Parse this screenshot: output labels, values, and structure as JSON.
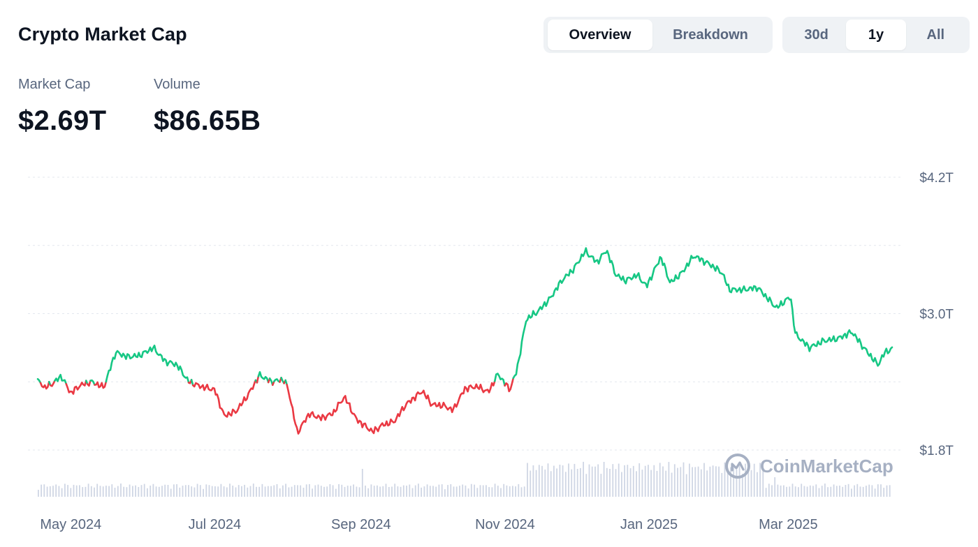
{
  "title": "Crypto Market Cap",
  "view_tabs": [
    {
      "label": "Overview",
      "active": true
    },
    {
      "label": "Breakdown",
      "active": false
    }
  ],
  "range_tabs": [
    {
      "label": "30d",
      "active": false
    },
    {
      "label": "1y",
      "active": true
    },
    {
      "label": "All",
      "active": false
    }
  ],
  "stats": {
    "market_cap": {
      "label": "Market Cap",
      "value": "$2.69T"
    },
    "volume": {
      "label": "Volume",
      "value": "$86.65B"
    }
  },
  "watermark": "CoinMarketCap",
  "colors": {
    "up": "#16c784",
    "down": "#ea3943",
    "volume": "#cfd6e4",
    "grid": "#e3e7ee",
    "text": "#58667e"
  },
  "chart_data": {
    "type": "line",
    "title": "",
    "xlabel": "",
    "ylabel": "",
    "y_tick_labels": [
      "$4.2T",
      "$3.0T",
      "$1.8T"
    ],
    "y_tick_values": [
      4.2,
      3.0,
      1.8
    ],
    "ylim": [
      1.8,
      4.2
    ],
    "x_tick_labels": [
      "May 2024",
      "Jul 2024",
      "Sep 2024",
      "Nov 2024",
      "Jan 2025",
      "Mar 2025"
    ],
    "x_tick_dates": [
      "2024-05-01",
      "2024-07-01",
      "2024-09-01",
      "2024-11-01",
      "2025-01-01",
      "2025-03-01"
    ],
    "xlim": [
      "2024-04-17",
      "2025-04-14"
    ],
    "baseline": 2.4,
    "grid": true,
    "series": [
      {
        "values_unit": "trillion USD",
        "points": [
          [
            "2024-04-17",
            2.41
          ],
          [
            "2024-04-20",
            2.35
          ],
          [
            "2024-04-23",
            2.38
          ],
          [
            "2024-04-27",
            2.45
          ],
          [
            "2024-05-01",
            2.3
          ],
          [
            "2024-05-05",
            2.37
          ],
          [
            "2024-05-10",
            2.4
          ],
          [
            "2024-05-15",
            2.35
          ],
          [
            "2024-05-20",
            2.66
          ],
          [
            "2024-05-25",
            2.62
          ],
          [
            "2024-05-30",
            2.63
          ],
          [
            "2024-06-05",
            2.7
          ],
          [
            "2024-06-10",
            2.58
          ],
          [
            "2024-06-15",
            2.55
          ],
          [
            "2024-06-20",
            2.4
          ],
          [
            "2024-06-25",
            2.36
          ],
          [
            "2024-07-01",
            2.33
          ],
          [
            "2024-07-05",
            2.1
          ],
          [
            "2024-07-10",
            2.14
          ],
          [
            "2024-07-15",
            2.28
          ],
          [
            "2024-07-20",
            2.46
          ],
          [
            "2024-07-25",
            2.4
          ],
          [
            "2024-07-30",
            2.42
          ],
          [
            "2024-08-01",
            2.35
          ],
          [
            "2024-08-05",
            1.95
          ],
          [
            "2024-08-10",
            2.12
          ],
          [
            "2024-08-15",
            2.08
          ],
          [
            "2024-08-20",
            2.12
          ],
          [
            "2024-08-25",
            2.27
          ],
          [
            "2024-08-30",
            2.07
          ],
          [
            "2024-09-06",
            1.96
          ],
          [
            "2024-09-10",
            2.02
          ],
          [
            "2024-09-15",
            2.05
          ],
          [
            "2024-09-20",
            2.2
          ],
          [
            "2024-09-27",
            2.32
          ],
          [
            "2024-10-01",
            2.2
          ],
          [
            "2024-10-06",
            2.19
          ],
          [
            "2024-10-10",
            2.15
          ],
          [
            "2024-10-15",
            2.34
          ],
          [
            "2024-10-20",
            2.36
          ],
          [
            "2024-10-25",
            2.31
          ],
          [
            "2024-10-29",
            2.47
          ],
          [
            "2024-11-03",
            2.33
          ],
          [
            "2024-11-06",
            2.5
          ],
          [
            "2024-11-10",
            2.95
          ],
          [
            "2024-11-15",
            3.02
          ],
          [
            "2024-11-20",
            3.13
          ],
          [
            "2024-11-25",
            3.29
          ],
          [
            "2024-11-30",
            3.39
          ],
          [
            "2024-12-05",
            3.55
          ],
          [
            "2024-12-10",
            3.45
          ],
          [
            "2024-12-14",
            3.56
          ],
          [
            "2024-12-18",
            3.34
          ],
          [
            "2024-12-22",
            3.29
          ],
          [
            "2024-12-27",
            3.34
          ],
          [
            "2024-12-31",
            3.24
          ],
          [
            "2025-01-06",
            3.5
          ],
          [
            "2025-01-10",
            3.27
          ],
          [
            "2025-01-15",
            3.36
          ],
          [
            "2025-01-20",
            3.51
          ],
          [
            "2025-01-27",
            3.43
          ],
          [
            "2025-02-01",
            3.36
          ],
          [
            "2025-02-04",
            3.21
          ],
          [
            "2025-02-10",
            3.21
          ],
          [
            "2025-02-16",
            3.23
          ],
          [
            "2025-02-24",
            3.05
          ],
          [
            "2025-03-02",
            3.15
          ],
          [
            "2025-03-04",
            2.82
          ],
          [
            "2025-03-10",
            2.7
          ],
          [
            "2025-03-16",
            2.76
          ],
          [
            "2025-03-22",
            2.78
          ],
          [
            "2025-03-28",
            2.84
          ],
          [
            "2025-04-02",
            2.7
          ],
          [
            "2025-04-08",
            2.55
          ],
          [
            "2025-04-11",
            2.66
          ],
          [
            "2025-04-14",
            2.69
          ]
        ]
      }
    ],
    "volume_bars": true
  }
}
